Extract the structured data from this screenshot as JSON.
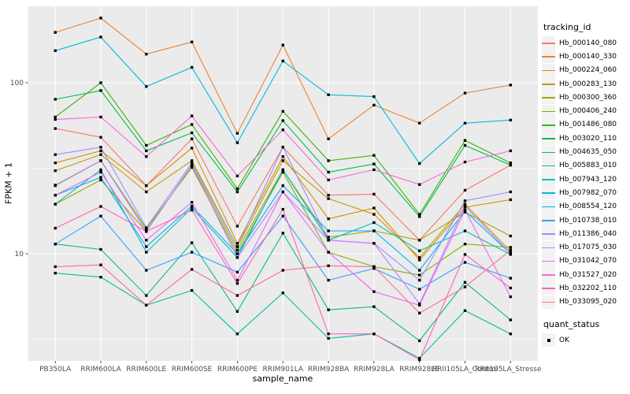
{
  "figure": {
    "background": "#FFFFFF",
    "panel_background": "#EBEBEB",
    "grid_color": "#FFFFFF",
    "tick_color": "#333333",
    "tick_label_color": "#4D4D4D",
    "point_color": "#000000"
  },
  "axes": {
    "x_title": "sample_name",
    "y_title": "FPKM + 1",
    "y_major_ticks": [
      10,
      100
    ],
    "y_minor_breaks": [
      3.162,
      31.623,
      316.23
    ]
  },
  "legend": {
    "tracking_title": "tracking_id",
    "quant_title": "quant_status",
    "quant_items": [
      {
        "label": "OK",
        "shape": "filled-square",
        "color": "#000000"
      }
    ]
  },
  "chart_data": {
    "type": "line",
    "x_categories": [
      "PB350LA",
      "RRIM600LA",
      "RRIM600LE",
      "RRIM600SE",
      "RRIM600PE",
      "RRIM901LA",
      "RRIM928BA",
      "RRIM928LA",
      "RRIM928LE",
      "RRII105LA_Control",
      "RRII105LA_Stressed"
    ],
    "xlabel": "sample_name",
    "ylabel": "FPKM + 1",
    "y_scale": "log10",
    "ylim": [
      2.36,
      280
    ],
    "grid": true,
    "legend_position": "right",
    "point_marker": "filled-square-black",
    "series": [
      {
        "name": "Hb_000140_080",
        "color": "#F8766D",
        "values": [
          54,
          48,
          25,
          47,
          14.5,
          42,
          22,
          22.3,
          12,
          23.5,
          33
        ]
      },
      {
        "name": "Hb_000140_330",
        "color": "#EA8331",
        "values": [
          197,
          239,
          147,
          173,
          50.6,
          166,
          47,
          74,
          58,
          87,
          97
        ]
      },
      {
        "name": "Hb_000224_060",
        "color": "#D89000",
        "values": [
          34,
          40,
          25,
          41.5,
          11.5,
          37,
          16,
          18.5,
          9.2,
          18.7,
          20.7
        ]
      },
      {
        "name": "Hb_000283_130",
        "color": "#C09B00",
        "values": [
          30.6,
          38,
          23,
          35,
          11,
          35,
          21,
          17,
          9.5,
          19.5,
          10.3
        ]
      },
      {
        "name": "Hb_000300_360",
        "color": "#A3A500",
        "values": [
          19.5,
          27,
          13.5,
          33,
          10.5,
          31,
          12.5,
          13.6,
          12,
          17.5,
          12.7
        ]
      },
      {
        "name": "Hb_000406_240",
        "color": "#7CAE00",
        "values": [
          25,
          35,
          14,
          32,
          10,
          30,
          10.2,
          8.4,
          7.5,
          11.4,
          10.9
        ]
      },
      {
        "name": "Hb_001486_080",
        "color": "#39B600",
        "values": [
          63,
          100,
          43,
          57,
          24,
          68,
          35,
          37.6,
          17,
          46,
          34
        ]
      },
      {
        "name": "Hb_003020_110",
        "color": "#00BB4E",
        "values": [
          80,
          90,
          40,
          51,
          23,
          60,
          30,
          33.5,
          16.5,
          43,
          33
        ]
      },
      {
        "name": "Hb_004635_050",
        "color": "#00BF7D",
        "values": [
          11.4,
          10.6,
          5.7,
          11.6,
          4.6,
          13.2,
          4.7,
          4.9,
          3.1,
          6.8,
          4.1
        ]
      },
      {
        "name": "Hb_005883_010",
        "color": "#00C1A3",
        "values": [
          7.7,
          7.3,
          5.0,
          6.1,
          3.4,
          5.9,
          3.2,
          3.4,
          2.45,
          4.65,
          3.4
        ]
      },
      {
        "name": "Hb_007943_120",
        "color": "#00BFC4",
        "values": [
          19.5,
          31,
          10.2,
          18.5,
          9.5,
          31,
          12,
          15.2,
          10.4,
          13.6,
          9.9
        ]
      },
      {
        "name": "Hb_007982_070",
        "color": "#00BAE0",
        "values": [
          154,
          185,
          95,
          123,
          44.6,
          134,
          85,
          83,
          33.7,
          58,
          60.5
        ]
      },
      {
        "name": "Hb_008554_120",
        "color": "#00B0F6",
        "values": [
          22,
          28,
          11,
          19,
          10,
          25,
          13.6,
          13.6,
          8,
          17.8,
          10
        ]
      },
      {
        "name": "Hb_010738_010",
        "color": "#35A2FF",
        "values": [
          11.4,
          16.6,
          8,
          10.2,
          7.8,
          16.6,
          7.0,
          8.2,
          6.2,
          8.9,
          7.2
        ]
      },
      {
        "name": "Hb_011386_040",
        "color": "#9590FF",
        "values": [
          38,
          42,
          14.2,
          34,
          11,
          42,
          12,
          11.5,
          7,
          20.4,
          23
        ]
      },
      {
        "name": "Hb_017075_030",
        "color": "#C77CFF",
        "values": [
          25.2,
          35,
          13.5,
          33,
          9.5,
          23,
          12,
          11.5,
          5.1,
          19,
          10
        ]
      },
      {
        "name": "Hb_031042_070",
        "color": "#E76BF3",
        "values": [
          22,
          30,
          12,
          20,
          7,
          23,
          10.2,
          6.0,
          5.0,
          18,
          5.6
        ]
      },
      {
        "name": "Hb_031527_020",
        "color": "#FA62DB",
        "values": [
          61,
          63,
          37,
          64,
          28.5,
          53,
          27,
          31,
          25.4,
          34.4,
          40
        ]
      },
      {
        "name": "Hb_032202_110",
        "color": "#FF62BC",
        "values": [
          14.1,
          18.9,
          13.5,
          18,
          6.7,
          18.2,
          3.4,
          3.4,
          2.4,
          9.9,
          6.3
        ]
      },
      {
        "name": "Hb_033095_020",
        "color": "#FF6A98",
        "values": [
          8.4,
          8.6,
          5.0,
          8.1,
          5.7,
          8.0,
          8.5,
          8.4,
          4.5,
          6.4,
          10.5
        ]
      }
    ]
  }
}
